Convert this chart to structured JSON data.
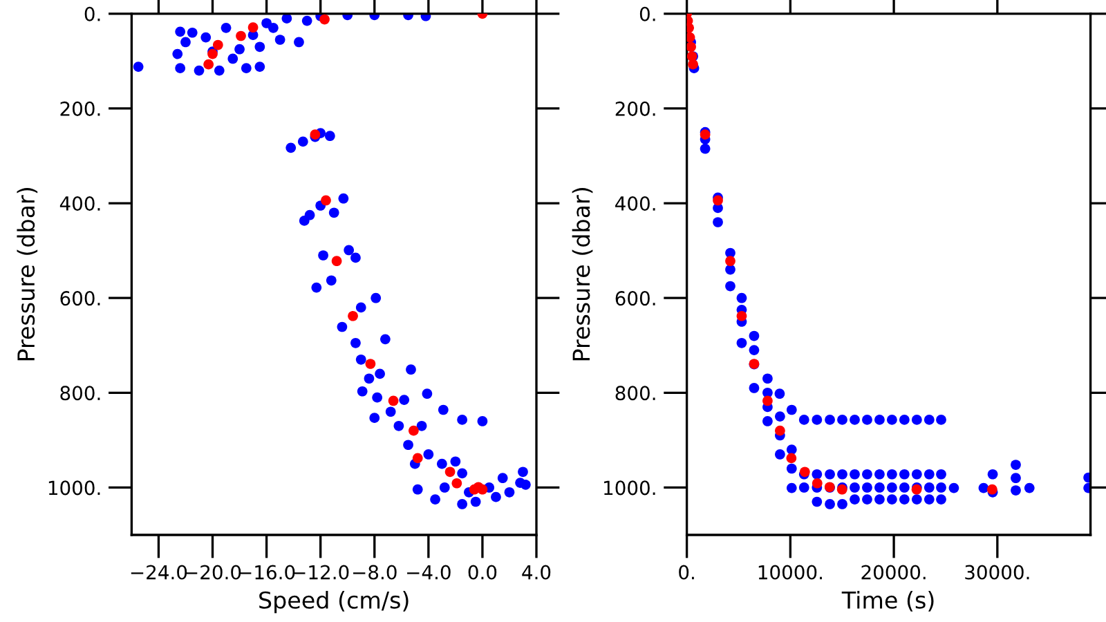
{
  "chart_data": [
    {
      "type": "scatter",
      "xlabel": "Speed (cm/s)",
      "ylabel": "Pressure (dbar)",
      "xlim": [
        -26,
        4
      ],
      "ylim": [
        1100,
        0
      ],
      "marker": "circle",
      "grid": false,
      "legend": false,
      "xticks": [
        {
          "value": -24,
          "label": "−24.0"
        },
        {
          "value": -20,
          "label": "−20.0"
        },
        {
          "value": -16,
          "label": "−16.0"
        },
        {
          "value": -12,
          "label": "−12.0"
        },
        {
          "value": -8,
          "label": "−8.0"
        },
        {
          "value": -4,
          "label": "−4.0"
        },
        {
          "value": 0,
          "label": "0.0"
        },
        {
          "value": 4,
          "label": "4.0"
        }
      ],
      "yticks": [
        {
          "value": 0,
          "label": "0."
        },
        {
          "value": 200,
          "label": "200."
        },
        {
          "value": 400,
          "label": "400."
        },
        {
          "value": 600,
          "label": "600."
        },
        {
          "value": 800,
          "label": "800."
        },
        {
          "value": 1000,
          "label": "1000."
        }
      ],
      "series": [
        {
          "color": "#0000ff",
          "x": [
            -25.5,
            -22.4,
            -22.6,
            -22.4,
            -22.0,
            -21.5,
            -21.0,
            -20.5,
            -19.5,
            -19.0,
            -18.5,
            -17.5,
            -16.5,
            -16.5,
            -17.0,
            -16.0,
            -15.0,
            -14.5,
            -13.0,
            -12.0,
            -10.0,
            -8.0,
            -5.5,
            -4.2,
            -13.6,
            -15.5,
            -20.0,
            -18.0,
            -14.2,
            -13.3,
            -12.4,
            -11.3,
            -12.0,
            -13.2,
            -10.3,
            -12.0,
            -11.0,
            -12.8,
            -11.8,
            -9.4,
            -9.9,
            -11.2,
            -12.3,
            -7.9,
            -10.4,
            -9.0,
            -9.4,
            -7.2,
            -9.0,
            -7.6,
            -8.4,
            -5.3,
            -8.9,
            -7.8,
            -5.8,
            -6.8,
            -4.1,
            -2.9,
            -1.5,
            0.0,
            -8.0,
            -6.2,
            -4.5,
            -5.5,
            -4.0,
            -3.0,
            -5.0,
            -2.0,
            -2.8,
            -1.5,
            -1.0,
            0.5,
            1.5,
            1.0,
            -0.5,
            2.8,
            3.0,
            3.2,
            -4.8,
            -3.5,
            -1.5,
            2.0
          ],
          "values": [
            112,
            38,
            85,
            115,
            60,
            40,
            120,
            50,
            120,
            30,
            95,
            115,
            112,
            70,
            45,
            20,
            55,
            10,
            15,
            5,
            3,
            3,
            3,
            5,
            60,
            30,
            80,
            75,
            283,
            270,
            260,
            258,
            252,
            437,
            390,
            405,
            420,
            425,
            510,
            515,
            499,
            563,
            578,
            600,
            661,
            620,
            695,
            687,
            730,
            760,
            770,
            751,
            797,
            810,
            815,
            840,
            802,
            836,
            857,
            860,
            853,
            870,
            870,
            910,
            930,
            950,
            950,
            945,
            1000,
            970,
            1010,
            1000,
            980,
            1020,
            1030,
            990,
            967,
            994,
            1004,
            1025,
            1035,
            1010
          ]
        },
        {
          "color": "#ff0000",
          "x": [
            0.0,
            -11.7,
            -17.0,
            -17.9,
            -19.6,
            -20.0,
            -20.3,
            -12.4,
            -11.6,
            -10.8,
            -9.6,
            -8.3,
            -6.6,
            -5.1,
            -4.8,
            -2.4,
            -1.9,
            -0.6,
            -0.3,
            0.0
          ],
          "values": [
            0,
            12,
            29,
            47,
            66,
            85,
            107,
            255,
            394,
            522,
            638,
            739,
            817,
            880,
            938,
            967,
            991,
            1004,
            999,
            1004
          ]
        }
      ]
    },
    {
      "type": "scatter",
      "xlabel": "Time (s)",
      "ylabel": "Pressure (dbar)",
      "xlim": [
        0,
        39000
      ],
      "ylim": [
        1100,
        0
      ],
      "marker": "circle",
      "grid": false,
      "legend": false,
      "xticks": [
        {
          "value": 0,
          "label": "0."
        },
        {
          "value": 10000,
          "label": "10000."
        },
        {
          "value": 20000,
          "label": "20000."
        },
        {
          "value": 30000,
          "label": "30000."
        }
      ],
      "yticks": [
        {
          "value": 0,
          "label": "0."
        },
        {
          "value": 200,
          "label": "200."
        },
        {
          "value": 400,
          "label": "400."
        },
        {
          "value": 600,
          "label": "600."
        },
        {
          "value": 800,
          "label": "800."
        },
        {
          "value": 1000,
          "label": "1000."
        }
      ],
      "series": [
        {
          "color": "#0000ff",
          "x": [
            400,
            600,
            700,
            1770,
            1770,
            1770,
            3000,
            3000,
            3000,
            4200,
            4200,
            4200,
            5300,
            5300,
            5300,
            5300,
            6500,
            6500,
            6500,
            6500,
            7800,
            7800,
            7800,
            7800,
            8970,
            9000,
            9000,
            9000,
            10130,
            10130,
            10130,
            10130,
            11330,
            11330,
            11330,
            12570,
            12570,
            12570,
            12570,
            13820,
            13820,
            13820,
            13820,
            15020,
            15020,
            15020,
            15020,
            16220,
            16220,
            16220,
            16220,
            17420,
            17420,
            17420,
            17420,
            18620,
            18620,
            18620,
            18620,
            19820,
            19820,
            19820,
            19820,
            21020,
            21020,
            21020,
            21020,
            22220,
            22220,
            22220,
            22220,
            23420,
            23420,
            23420,
            23420,
            24570,
            24570,
            24570,
            24570,
            25800,
            28670,
            29550,
            29550,
            31780,
            31780,
            31780,
            33100,
            38800,
            38800
          ],
          "values": [
            60,
            90,
            115,
            250,
            265,
            285,
            388,
            410,
            440,
            505,
            540,
            575,
            600,
            625,
            650,
            695,
            680,
            710,
            740,
            790,
            770,
            800,
            830,
            860,
            802,
            850,
            890,
            930,
            836,
            920,
            960,
            1001,
            857,
            972,
            1000,
            857,
            972,
            1000,
            1030,
            857,
            972,
            1000,
            1035,
            857,
            972,
            1000,
            1035,
            857,
            972,
            1000,
            1025,
            857,
            972,
            1000,
            1025,
            857,
            972,
            1000,
            1025,
            857,
            972,
            1000,
            1025,
            857,
            972,
            1000,
            1025,
            857,
            972,
            1000,
            1025,
            857,
            972,
            1000,
            1025,
            857,
            972,
            1000,
            1025,
            1001,
            1001,
            972,
            1010,
            952,
            980,
            1006,
            1001,
            979,
            1001
          ]
        },
        {
          "color": "#ff0000",
          "x": [
            0,
            100,
            200,
            300,
            400,
            500,
            600,
            1770,
            3000,
            4200,
            5300,
            6500,
            7800,
            9000,
            10100,
            11400,
            12600,
            13800,
            15000,
            22200,
            29500
          ],
          "values": [
            0,
            15,
            30,
            50,
            70,
            90,
            107,
            255,
            394,
            522,
            638,
            739,
            817,
            880,
            938,
            967,
            991,
            999,
            1004,
            1004,
            1004
          ]
        }
      ]
    }
  ]
}
